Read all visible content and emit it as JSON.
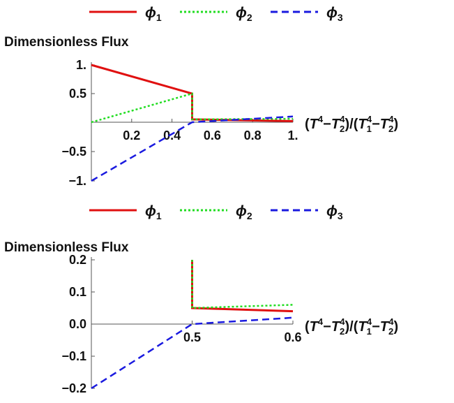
{
  "chart_data": [
    {
      "type": "line",
      "ylabel": "Dimensionless Flux",
      "xlabel_parts": [
        "(T",
        "4",
        "−T",
        "2",
        "4",
        ")/(T",
        "1",
        "4",
        "−T",
        "2",
        "4",
        ")"
      ],
      "xlim": [
        0,
        1
      ],
      "ylim": [
        -1,
        1
      ],
      "x_ticks": [
        "0.2",
        "0.4",
        "0.6",
        "0.8",
        "1."
      ],
      "x_tick_values": [
        0.2,
        0.4,
        0.6,
        0.8,
        1.0
      ],
      "y_ticks": [
        "1.",
        "0.5",
        "−0.5",
        "−1."
      ],
      "y_tick_values": [
        1,
        0.5,
        -0.5,
        -1
      ],
      "legend": {
        "placement": "top",
        "labels": [
          [
            "ϕ",
            "1"
          ],
          [
            "ϕ",
            "2"
          ],
          [
            "ϕ",
            "3"
          ]
        ]
      },
      "series": [
        {
          "name": "ϕ₁",
          "color": "#e01010",
          "dash": "solid",
          "points": [
            [
              0,
              1.0
            ],
            [
              0.5,
              0.5
            ],
            [
              0.5,
              0.05
            ],
            [
              1.0,
              0.02
            ]
          ]
        },
        {
          "name": "ϕ₂",
          "color": "#22dd22",
          "dash": "dotted",
          "points": [
            [
              0,
              0.0
            ],
            [
              0.5,
              0.5
            ],
            [
              0.5,
              0.05
            ],
            [
              1.0,
              0.06
            ]
          ]
        },
        {
          "name": "ϕ₃",
          "color": "#1a1adf",
          "dash": "dashed",
          "points": [
            [
              0,
              -1.0
            ],
            [
              0.5,
              0.0
            ],
            [
              1.0,
              0.1
            ]
          ]
        }
      ]
    },
    {
      "type": "line",
      "ylabel": "Dimensionless Flux",
      "xlabel_parts": [
        "(T",
        "4",
        "−T",
        "2",
        "4",
        ")/(T",
        "1",
        "4",
        "−T",
        "2",
        "4",
        ")"
      ],
      "xlim": [
        0.4,
        0.6
      ],
      "ylim": [
        -0.2,
        0.2
      ],
      "x_ticks": [
        "0.5",
        "0.6"
      ],
      "x_tick_values": [
        0.5,
        0.6
      ],
      "y_ticks": [
        "0.2",
        "0.1",
        "0.0",
        "−0.1",
        "−0.2"
      ],
      "y_tick_values": [
        0.2,
        0.1,
        0.0,
        -0.1,
        -0.2
      ],
      "legend": {
        "placement": "top",
        "labels": [
          [
            "ϕ",
            "1"
          ],
          [
            "ϕ",
            "2"
          ],
          [
            "ϕ",
            "3"
          ]
        ]
      },
      "series": [
        {
          "name": "ϕ₁",
          "color": "#e01010",
          "dash": "solid",
          "points": [
            [
              0.5,
              0.2
            ],
            [
              0.5,
              0.05
            ],
            [
              0.6,
              0.04
            ]
          ]
        },
        {
          "name": "ϕ₂",
          "color": "#22dd22",
          "dash": "dotted",
          "points": [
            [
              0.5,
              0.2
            ],
            [
              0.5,
              0.05
            ],
            [
              0.6,
              0.06
            ]
          ]
        },
        {
          "name": "ϕ₃",
          "color": "#1a1adf",
          "dash": "dashed",
          "points": [
            [
              0.4,
              -0.2
            ],
            [
              0.5,
              0.0
            ],
            [
              0.6,
              0.02
            ]
          ]
        }
      ]
    }
  ]
}
